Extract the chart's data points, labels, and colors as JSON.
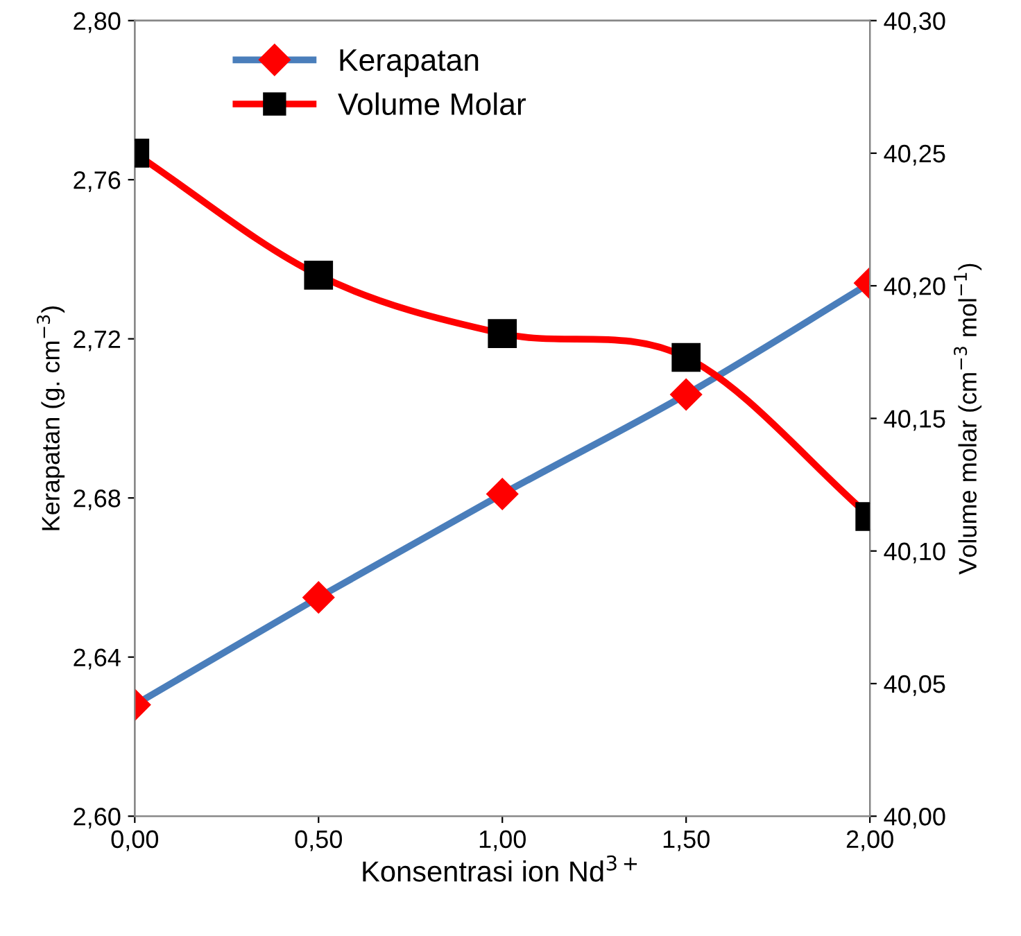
{
  "chart_data": {
    "type": "line",
    "x": [
      0,
      0.5,
      1.0,
      1.5,
      2.0
    ],
    "series": [
      {
        "name": "Kerapatan",
        "color": "#4a7ebb",
        "colors": [
          "#ff0000",
          "#ff0000",
          "#ff0000",
          "#ff0000",
          "#ff0000"
        ],
        "marker": "diamond",
        "values": [
          2.628,
          2.655,
          2.681,
          2.706,
          2.734
        ]
      },
      {
        "name": "Volume Molar",
        "color": "#ff0000",
        "colors": [
          "#000000",
          "#000000",
          "#000000",
          "#000000",
          "#000000"
        ],
        "marker": "square",
        "axis": "y2",
        "values": [
          40.25,
          40.204,
          40.182,
          40.173,
          40.113
        ]
      }
    ],
    "xlabel": "Konsentrasi ion Nd$^{3+}$",
    "ylabel": "Kerapatan (g. cm$^{−3}$)",
    "y2label": "Volume molar (cm$^{−3}$ mol$^{−1}$)",
    "xlim": [
      0,
      2
    ],
    "xticks": [
      {
        "value": 0,
        "label": "0,00"
      },
      {
        "value": 0.5,
        "label": "0,50"
      },
      {
        "value": 1.0,
        "label": "1,00"
      },
      {
        "value": 1.5,
        "label": "1,50"
      },
      {
        "value": 2.0,
        "label": "2,00"
      }
    ],
    "ylim": [
      2.6,
      2.8
    ],
    "yticks": [
      {
        "value": 2.6,
        "label": "2,60"
      },
      {
        "value": 2.64,
        "label": "2,64"
      },
      {
        "value": 2.68,
        "label": "2,68"
      },
      {
        "value": 2.72,
        "label": "2,72"
      },
      {
        "value": 2.76,
        "label": "2,76"
      },
      {
        "value": 2.8,
        "label": "2,80"
      }
    ],
    "y2lim": [
      40.0,
      40.3
    ],
    "y2ticks": [
      {
        "value": 40.0,
        "label": "40,00"
      },
      {
        "value": 40.05,
        "label": "40,05"
      },
      {
        "value": 40.1,
        "label": "40,10"
      },
      {
        "value": 40.15,
        "label": "40,15"
      },
      {
        "value": 40.2,
        "label": "40,20"
      },
      {
        "value": 40.25,
        "label": "40,25"
      },
      {
        "value": 40.3,
        "label": "40,30"
      }
    ],
    "legend": "top left",
    "grid": false,
    "line_style": "solid"
  }
}
